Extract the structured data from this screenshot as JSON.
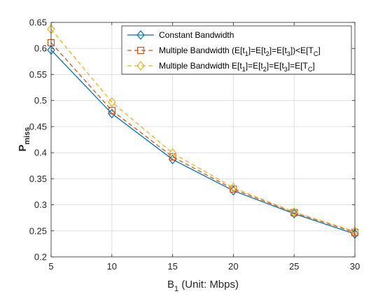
{
  "chart_data": {
    "type": "line",
    "x": [
      5,
      10,
      15,
      20,
      25,
      30
    ],
    "xlim": [
      5,
      30
    ],
    "ylim": [
      0.2,
      0.65
    ],
    "xticks": [
      "5",
      "10",
      "15",
      "20",
      "25",
      "30"
    ],
    "yticks": [
      "0.2",
      "0.25",
      "0.3",
      "0.35",
      "0.4",
      "0.45",
      "0.5",
      "0.55",
      "0.6",
      "0.65"
    ],
    "xlabel": {
      "main": "B",
      "sub": "1",
      "rest": " (Unit: Mbps)"
    },
    "ylabel": {
      "main": "P",
      "sub": "miss"
    },
    "grid": true,
    "legend_position": "top-right",
    "series": [
      {
        "legend": {
          "parts": [
            {
              "t": "Constant Bandwidth"
            }
          ]
        },
        "values": [
          0.597,
          0.475,
          0.387,
          0.327,
          0.283,
          0.244
        ],
        "color": "#0072BD",
        "line": "solid",
        "marker": "diamond"
      },
      {
        "legend": {
          "parts": [
            {
              "t": "Multiple Bandwidth (E[t"
            },
            {
              "t": "1",
              "sub": true
            },
            {
              "t": "]=E[t"
            },
            {
              "t": "2",
              "sub": true
            },
            {
              "t": "]=E[t"
            },
            {
              "t": "3",
              "sub": true
            },
            {
              "t": "])<E[T"
            },
            {
              "t": "C",
              "sub": true
            },
            {
              "t": "]"
            }
          ]
        },
        "values": [
          0.611,
          0.481,
          0.392,
          0.33,
          0.285,
          0.247
        ],
        "color": "#D95319",
        "line": "dashed",
        "marker": "square"
      },
      {
        "legend": {
          "parts": [
            {
              "t": "Multiple Bandwidth E[t"
            },
            {
              "t": "1",
              "sub": true
            },
            {
              "t": "]=E[t"
            },
            {
              "t": "2",
              "sub": true
            },
            {
              "t": "]=E[t"
            },
            {
              "t": "3",
              "sub": true
            },
            {
              "t": "]=E[T"
            },
            {
              "t": "C",
              "sub": true
            },
            {
              "t": "]"
            }
          ]
        },
        "values": [
          0.637,
          0.497,
          0.399,
          0.333,
          0.286,
          0.249
        ],
        "color": "#EDB120",
        "line": "dashed",
        "marker": "diamond"
      }
    ]
  }
}
